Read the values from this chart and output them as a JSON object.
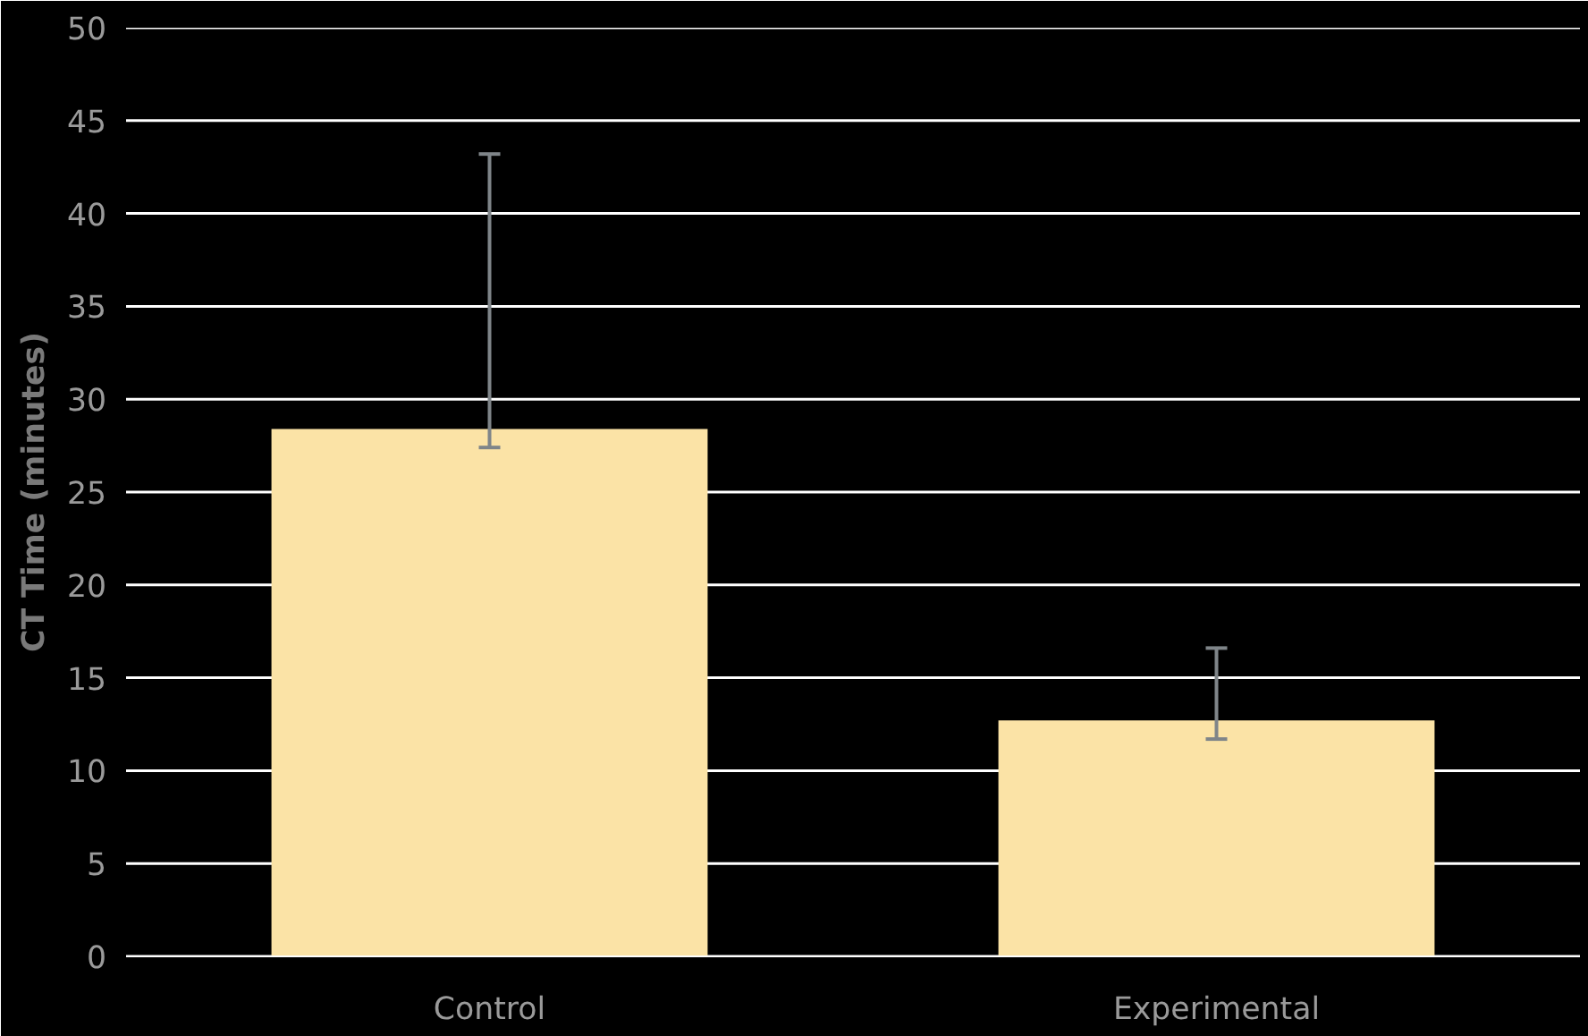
{
  "chart_data": {
    "type": "bar",
    "ylabel": "CT Time (minutes)",
    "categories": [
      "Control",
      "Experimental"
    ],
    "values": [
      28.4,
      12.7
    ],
    "errors": [
      [
        27.4,
        43.2
      ],
      [
        11.7,
        16.6
      ]
    ],
    "color": "#fbe3a6",
    "ylim": [
      0,
      50
    ],
    "yticks": [
      0,
      5,
      10,
      15,
      20,
      25,
      30,
      35,
      40,
      45,
      50
    ],
    "grid": "y"
  }
}
